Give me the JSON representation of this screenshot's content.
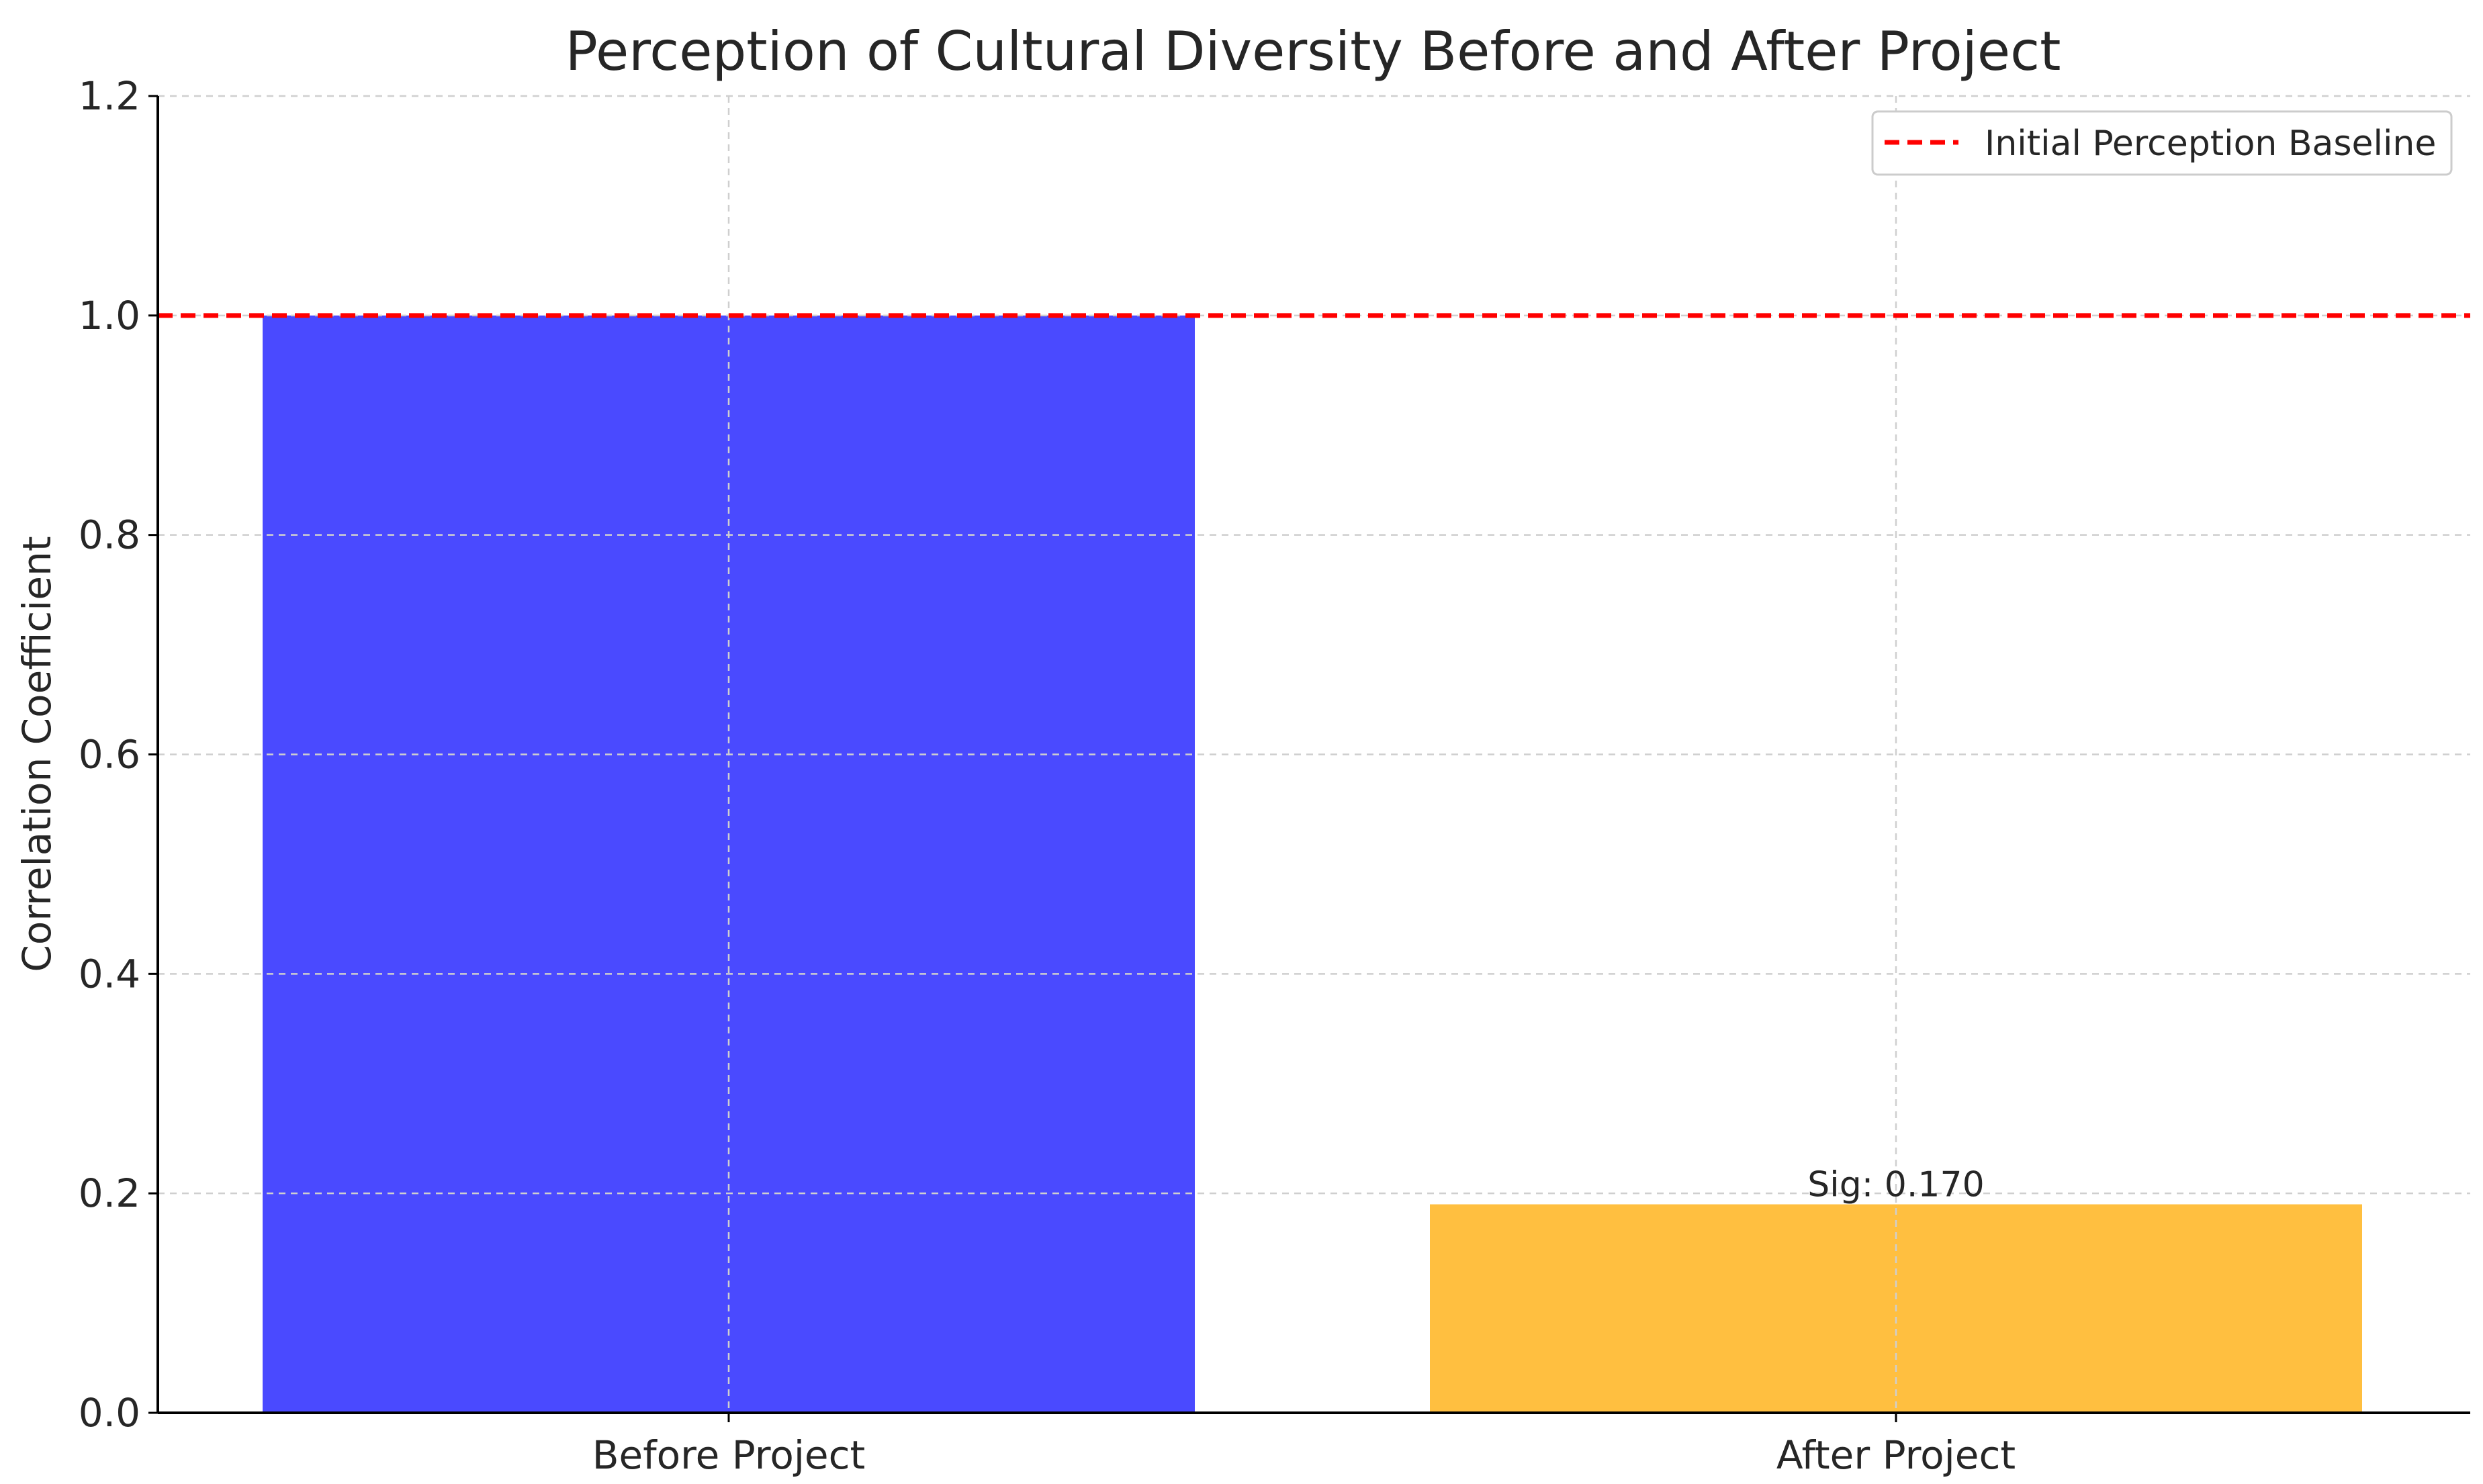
{
  "chart_data": {
    "type": "bar",
    "title": "Perception of Cultural Diversity Before and After Project",
    "xlabel": "",
    "ylabel": "Correlation Coefficient",
    "categories": [
      "Before Project",
      "After Project"
    ],
    "values": [
      1.0,
      0.19
    ],
    "bar_colors": [
      "#4a4aff",
      "#ffbf40"
    ],
    "annotations": [
      {
        "category": "After Project",
        "text": "Sig: 0.170"
      }
    ],
    "ylim": [
      0,
      1.2
    ],
    "yticks": [
      "0.0",
      "0.2",
      "0.4",
      "0.6",
      "0.8",
      "1.0",
      "1.2"
    ],
    "reference_line": {
      "y": 1.0,
      "style": "dashed",
      "color": "#ff0000",
      "label": "Initial Perception Baseline"
    },
    "grid": true,
    "legend_position": "top-right"
  }
}
